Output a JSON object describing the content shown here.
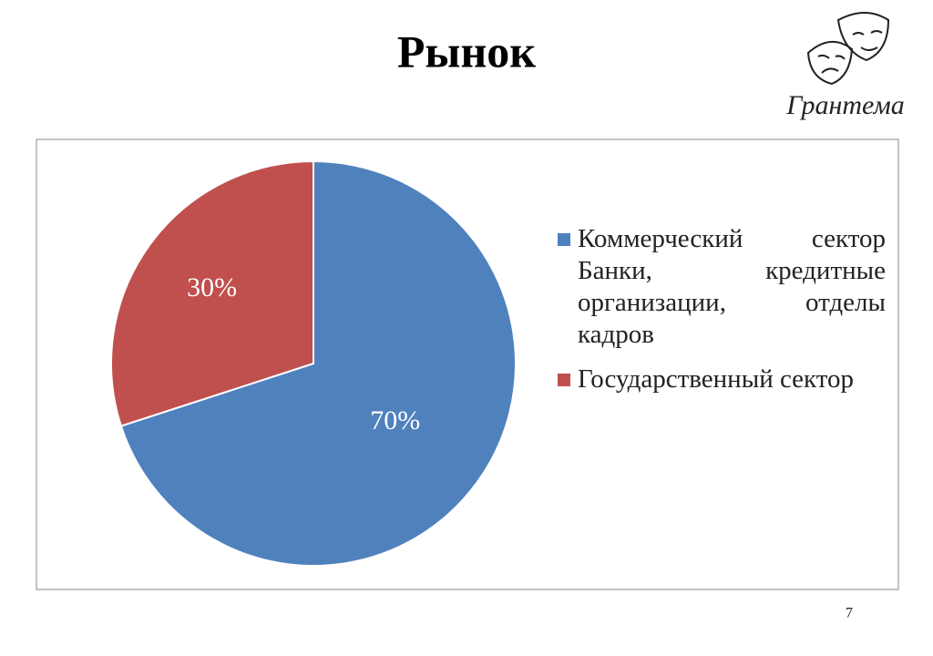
{
  "chart_data": {
    "type": "pie",
    "title": "Рынок",
    "categories": [
      "Коммерческий сектор Банки, кредитные организации, отделы кадров",
      "Государственный сектор"
    ],
    "values": [
      70,
      30
    ],
    "value_labels": [
      "70%",
      "30%"
    ],
    "colors": [
      "#4f81bd",
      "#c0504d"
    ],
    "legend": "right"
  },
  "logo": {
    "text": "Грантема"
  },
  "page_number": 7
}
